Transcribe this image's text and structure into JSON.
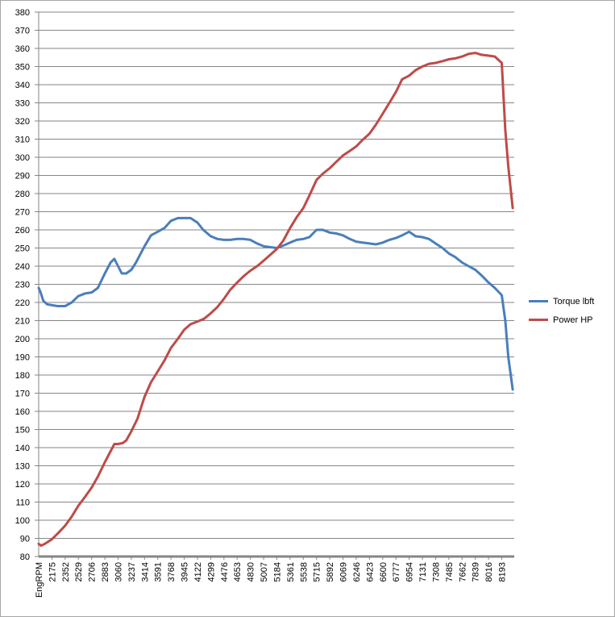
{
  "chart_data": {
    "type": "line",
    "title": "",
    "xlabel": "",
    "ylabel": "",
    "ylim": [
      80,
      380
    ],
    "ytick_step": 10,
    "grid": true,
    "legend_position": "right",
    "x_first_label": "EngRPM",
    "x_ticks": [
      2175,
      2352,
      2529,
      2706,
      2883,
      3060,
      3237,
      3414,
      3591,
      3768,
      3945,
      4122,
      4299,
      4476,
      4653,
      4830,
      5007,
      5184,
      5361,
      5538,
      5715,
      5892,
      6069,
      6246,
      6423,
      6600,
      6777,
      6954,
      7131,
      7308,
      7485,
      7662,
      7839,
      8016,
      8193
    ],
    "x_range": [
      1998,
      8360
    ],
    "series": [
      {
        "name": "Torque lbft",
        "color": "#4a7ebb",
        "points": [
          [
            1998,
            228
          ],
          [
            2020,
            226
          ],
          [
            2060,
            221
          ],
          [
            2110,
            219
          ],
          [
            2175,
            218.5
          ],
          [
            2250,
            218
          ],
          [
            2352,
            218
          ],
          [
            2440,
            220
          ],
          [
            2529,
            223.5
          ],
          [
            2620,
            225
          ],
          [
            2706,
            225.5
          ],
          [
            2790,
            228
          ],
          [
            2883,
            236
          ],
          [
            2960,
            242
          ],
          [
            3010,
            244
          ],
          [
            3060,
            240
          ],
          [
            3110,
            236
          ],
          [
            3170,
            236
          ],
          [
            3237,
            238
          ],
          [
            3300,
            242
          ],
          [
            3414,
            251
          ],
          [
            3500,
            257
          ],
          [
            3591,
            259
          ],
          [
            3680,
            261
          ],
          [
            3768,
            265
          ],
          [
            3860,
            266.5
          ],
          [
            3945,
            266.5
          ],
          [
            4030,
            266.5
          ],
          [
            4122,
            264
          ],
          [
            4200,
            260
          ],
          [
            4299,
            256.5
          ],
          [
            4390,
            255
          ],
          [
            4476,
            254.5
          ],
          [
            4560,
            254.5
          ],
          [
            4653,
            255
          ],
          [
            4740,
            255
          ],
          [
            4830,
            254.5
          ],
          [
            4920,
            252.5
          ],
          [
            5007,
            251
          ],
          [
            5090,
            250.5
          ],
          [
            5184,
            250
          ],
          [
            5280,
            251.5
          ],
          [
            5361,
            253
          ],
          [
            5450,
            254.5
          ],
          [
            5538,
            255
          ],
          [
            5620,
            256
          ],
          [
            5715,
            260
          ],
          [
            5800,
            260
          ],
          [
            5892,
            258.5
          ],
          [
            5980,
            258
          ],
          [
            6069,
            257
          ],
          [
            6160,
            255
          ],
          [
            6246,
            253.5
          ],
          [
            6330,
            253
          ],
          [
            6423,
            252.5
          ],
          [
            6510,
            252
          ],
          [
            6600,
            253
          ],
          [
            6690,
            254.5
          ],
          [
            6777,
            255.5
          ],
          [
            6860,
            257
          ],
          [
            6954,
            259
          ],
          [
            7040,
            256.5
          ],
          [
            7131,
            256
          ],
          [
            7220,
            255
          ],
          [
            7308,
            252.5
          ],
          [
            7400,
            250
          ],
          [
            7485,
            247
          ],
          [
            7570,
            245
          ],
          [
            7662,
            242
          ],
          [
            7750,
            240
          ],
          [
            7839,
            238
          ],
          [
            7920,
            235
          ],
          [
            8016,
            231
          ],
          [
            8100,
            228
          ],
          [
            8193,
            224
          ],
          [
            8240,
            210
          ],
          [
            8280,
            190
          ],
          [
            8340,
            172
          ]
        ]
      },
      {
        "name": "Power HP",
        "color": "#be4b48",
        "points": [
          [
            1998,
            87
          ],
          [
            2030,
            86
          ],
          [
            2080,
            87
          ],
          [
            2175,
            89.5
          ],
          [
            2260,
            93
          ],
          [
            2352,
            97
          ],
          [
            2440,
            102
          ],
          [
            2529,
            108
          ],
          [
            2620,
            113
          ],
          [
            2706,
            118
          ],
          [
            2790,
            124
          ],
          [
            2883,
            132
          ],
          [
            2960,
            138
          ],
          [
            3010,
            142
          ],
          [
            3060,
            142
          ],
          [
            3120,
            142.5
          ],
          [
            3170,
            144
          ],
          [
            3237,
            149
          ],
          [
            3320,
            156
          ],
          [
            3414,
            168
          ],
          [
            3500,
            176
          ],
          [
            3591,
            182
          ],
          [
            3680,
            188
          ],
          [
            3768,
            195
          ],
          [
            3860,
            200
          ],
          [
            3945,
            205
          ],
          [
            4030,
            208
          ],
          [
            4122,
            209.5
          ],
          [
            4210,
            211
          ],
          [
            4299,
            214
          ],
          [
            4390,
            217.5
          ],
          [
            4476,
            222
          ],
          [
            4560,
            227
          ],
          [
            4653,
            231
          ],
          [
            4740,
            234.5
          ],
          [
            4830,
            237.5
          ],
          [
            4920,
            240
          ],
          [
            5007,
            243
          ],
          [
            5090,
            246
          ],
          [
            5184,
            249.5
          ],
          [
            5270,
            254
          ],
          [
            5361,
            261
          ],
          [
            5450,
            267
          ],
          [
            5538,
            272
          ],
          [
            5620,
            279
          ],
          [
            5715,
            287.5
          ],
          [
            5800,
            291
          ],
          [
            5892,
            294
          ],
          [
            5980,
            297.5
          ],
          [
            6069,
            301
          ],
          [
            6160,
            303.5
          ],
          [
            6246,
            306
          ],
          [
            6330,
            309.5
          ],
          [
            6423,
            313
          ],
          [
            6510,
            318
          ],
          [
            6600,
            324
          ],
          [
            6690,
            330
          ],
          [
            6777,
            336
          ],
          [
            6860,
            343
          ],
          [
            6954,
            345
          ],
          [
            7040,
            348
          ],
          [
            7131,
            350
          ],
          [
            7220,
            351.5
          ],
          [
            7308,
            352
          ],
          [
            7400,
            353
          ],
          [
            7485,
            354
          ],
          [
            7570,
            354.5
          ],
          [
            7662,
            355.5
          ],
          [
            7750,
            357
          ],
          [
            7839,
            357.5
          ],
          [
            7920,
            356.5
          ],
          [
            8016,
            356
          ],
          [
            8100,
            355.5
          ],
          [
            8193,
            352
          ],
          [
            8240,
            315
          ],
          [
            8280,
            295
          ],
          [
            8340,
            272
          ]
        ]
      }
    ]
  }
}
